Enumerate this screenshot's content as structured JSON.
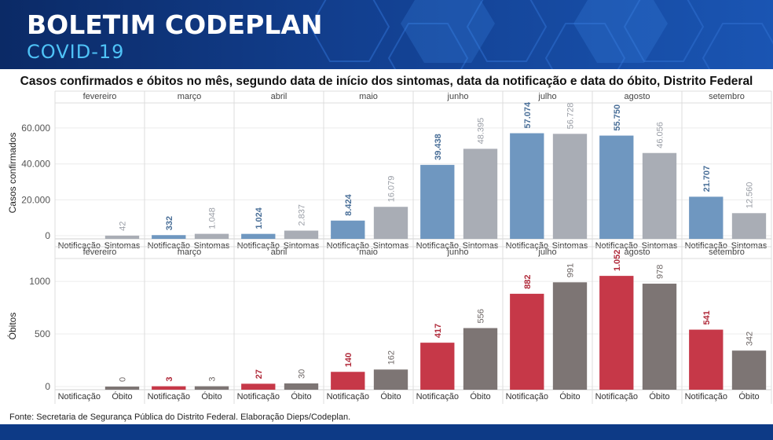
{
  "header": {
    "title": "BOLETIM CODEPLAN",
    "subtitle": "COVID-19"
  },
  "chart_data": {
    "type": "bar",
    "title": "Casos confirmados e óbitos no mês, segundo data de início dos sintomas, data da notificação e data do óbito, Distrito Federal",
    "source": "Fonte: Secretaria de Segurança Pública do Distrito Federal. Elaboração Dieps/Codeplan.",
    "months": [
      "fevereiro",
      "março",
      "abril",
      "maio",
      "junho",
      "julho",
      "agosto",
      "setembro"
    ],
    "panels": [
      {
        "ylabel": "Casos confirmados",
        "ylim": [
          0,
          70000
        ],
        "yticks": [
          0,
          20000,
          40000,
          60000
        ],
        "ytick_labels": [
          "0",
          "20.000",
          "40.000",
          "60.000"
        ],
        "categories": [
          "Notificação",
          "Sintomas"
        ],
        "colors": [
          "#6f97c0",
          "#a9adb5"
        ],
        "label_colors": [
          "#4a6f98",
          "#9a9ea6"
        ],
        "series": [
          {
            "name": "Notificação",
            "values": [
              null,
              332,
              1024,
              8424,
              39438,
              57074,
              55750,
              21707
            ],
            "labels": [
              "",
              "332",
              "1.024",
              "8.424",
              "39.438",
              "57.074",
              "55.750",
              "21.707"
            ]
          },
          {
            "name": "Sintomas",
            "values": [
              42,
              1048,
              2837,
              16079,
              48395,
              56728,
              46056,
              12560
            ],
            "labels": [
              "42",
              "1.048",
              "2.837",
              "16.079",
              "48.395",
              "56.728",
              "46.056",
              "12.560"
            ]
          }
        ]
      },
      {
        "ylabel": "Óbitos",
        "ylim": [
          0,
          1150
        ],
        "yticks": [
          0,
          500,
          1000
        ],
        "ytick_labels": [
          "0",
          "500",
          "1000"
        ],
        "categories": [
          "Notificação",
          "Óbito"
        ],
        "colors": [
          "#c63848",
          "#7d7574"
        ],
        "label_colors": [
          "#b02a3a",
          "#6e6766"
        ],
        "series": [
          {
            "name": "Notificação",
            "values": [
              null,
              3,
              27,
              140,
              417,
              882,
              1052,
              541
            ],
            "labels": [
              "",
              "3",
              "27",
              "140",
              "417",
              "882",
              "1.052",
              "541"
            ]
          },
          {
            "name": "Óbito",
            "values": [
              0,
              3,
              30,
              162,
              556,
              991,
              978,
              342
            ],
            "labels": [
              "0",
              "3",
              "30",
              "162",
              "556",
              "991",
              "978",
              "342"
            ]
          }
        ]
      }
    ]
  }
}
